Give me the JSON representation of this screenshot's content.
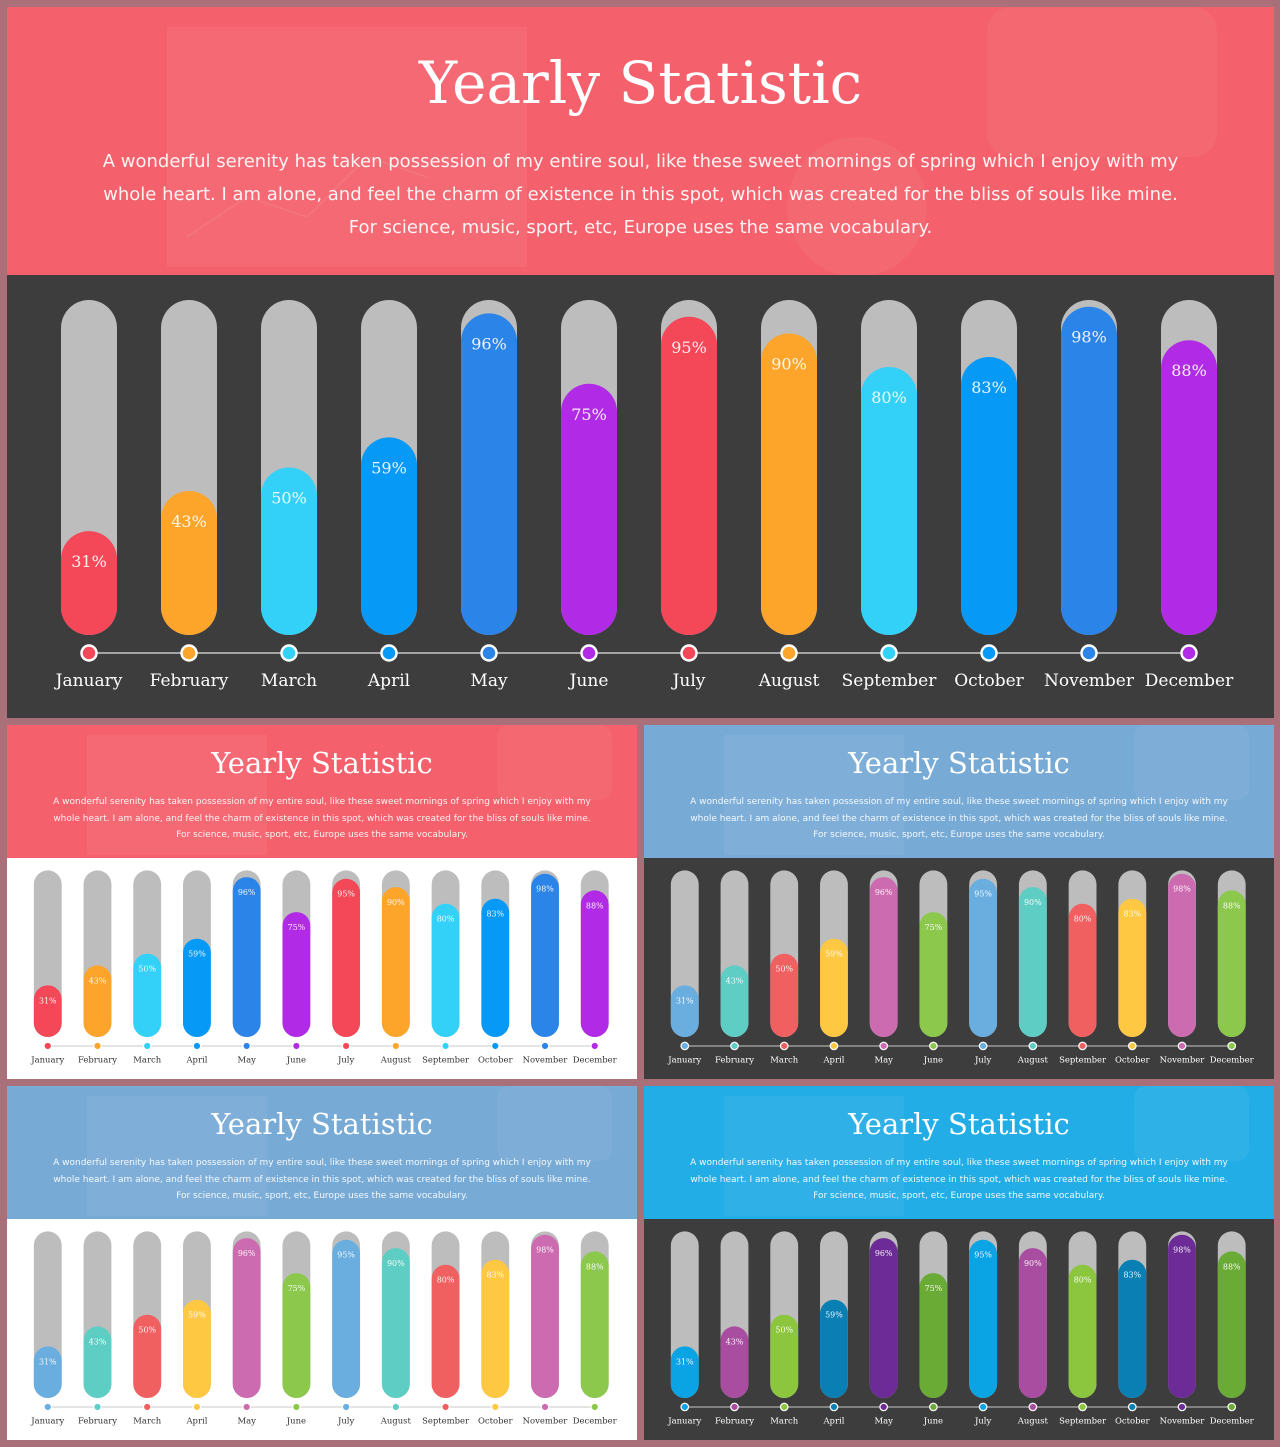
{
  "slides": [
    {
      "id": "main",
      "title": "Yearly Statistic",
      "description": "A wonderful serenity has taken possession of my entire soul, like these sweet mornings of spring which I enjoy with my whole heart. I am alone, and feel the charm of existence in this spot, which was created for the bliss of souls like mine. For science, music, sport, etc, Europe uses the same vocabulary.",
      "header_color": "#f4606b",
      "body_color": "#3d3d3d",
      "label_color": "#ffffff"
    },
    {
      "id": "variant-1",
      "title": "Yearly Statistic",
      "description": "A wonderful serenity has taken possession of my entire soul, like these sweet mornings of spring which I enjoy with my whole heart. I am alone, and feel the charm of existence in this spot, which was created for the bliss of souls like mine. For science, music, sport, etc, Europe uses the same vocabulary.",
      "header_color": "#f4606b",
      "body_color": "#ffffff",
      "label_color": "#333333"
    },
    {
      "id": "variant-2",
      "title": "Yearly Statistic",
      "description": "A wonderful serenity has taken possession of my entire soul, like these sweet mornings of spring which I enjoy with my whole heart. I am alone, and feel the charm of existence in this spot, which was created for the bliss of souls like mine. For science, music, sport, etc, Europe uses the same vocabulary.",
      "header_color": "#78aad6",
      "body_color": "#3d3d3d",
      "label_color": "#ffffff"
    },
    {
      "id": "variant-3",
      "title": "Yearly Statistic",
      "description": "A wonderful serenity has taken possession of my entire soul, like these sweet mornings of spring which I enjoy with my whole heart. I am alone, and feel the charm of existence in this spot, which was created for the bliss of souls like mine. For science, music, sport, etc, Europe uses the same vocabulary.",
      "header_color": "#78aad6",
      "body_color": "#ffffff",
      "label_color": "#333333"
    },
    {
      "id": "variant-4",
      "title": "Yearly Statistic",
      "description": "A wonderful serenity has taken possession of my entire soul, like these sweet mornings of spring which I enjoy with my whole heart. I am alone, and feel the charm of existence in this spot, which was created for the bliss of souls like mine. For science, music, sport, etc, Europe uses the same vocabulary.",
      "header_color": "#23ade6",
      "body_color": "#3d3d3d",
      "label_color": "#ffffff"
    }
  ],
  "chart_data": [
    {
      "type": "bar",
      "categories": [
        "January",
        "February",
        "March",
        "April",
        "May",
        "June",
        "July",
        "August",
        "September",
        "October",
        "November",
        "December"
      ],
      "values": [
        31,
        43,
        50,
        59,
        96,
        75,
        95,
        90,
        80,
        83,
        98,
        88
      ],
      "value_labels": [
        "31%",
        "43%",
        "50%",
        "59%",
        "96%",
        "75%",
        "95%",
        "90%",
        "80%",
        "83%",
        "98%",
        "88%"
      ],
      "ylim": [
        0,
        100
      ],
      "track_color": "#bdbdbd",
      "colors": [
        "#f44858",
        "#fca52a",
        "#33d1f8",
        "#0799f6",
        "#2b85e8",
        "#b12be6",
        "#f44858",
        "#fca52a",
        "#33d1f8",
        "#0799f6",
        "#2b85e8",
        "#b12be6"
      ]
    },
    {
      "type": "bar",
      "categories": [
        "January",
        "February",
        "March",
        "April",
        "May",
        "June",
        "July",
        "August",
        "September",
        "October",
        "November",
        "December"
      ],
      "values": [
        31,
        43,
        50,
        59,
        96,
        75,
        95,
        90,
        80,
        83,
        98,
        88
      ],
      "value_labels": [
        "31%",
        "43%",
        "50%",
        "59%",
        "96%",
        "75%",
        "95%",
        "90%",
        "80%",
        "83%",
        "98%",
        "88%"
      ],
      "ylim": [
        0,
        100
      ],
      "track_color": "#bdbdbd",
      "colors": [
        "#f44858",
        "#fca52a",
        "#33d1f8",
        "#0799f6",
        "#2b85e8",
        "#b12be6",
        "#f44858",
        "#fca52a",
        "#33d1f8",
        "#0799f6",
        "#2b85e8",
        "#b12be6"
      ]
    },
    {
      "type": "bar",
      "categories": [
        "January",
        "February",
        "March",
        "April",
        "May",
        "June",
        "July",
        "August",
        "September",
        "October",
        "November",
        "December"
      ],
      "values": [
        31,
        43,
        50,
        59,
        96,
        75,
        95,
        90,
        80,
        83,
        98,
        88
      ],
      "value_labels": [
        "31%",
        "43%",
        "50%",
        "59%",
        "96%",
        "75%",
        "95%",
        "90%",
        "80%",
        "83%",
        "98%",
        "88%"
      ],
      "ylim": [
        0,
        100
      ],
      "track_color": "#bdbdbd",
      "colors": [
        "#6aaee0",
        "#5ecdc4",
        "#f06060",
        "#fec842",
        "#cd6bb1",
        "#8cc84c",
        "#6aaee0",
        "#5ecdc4",
        "#f06060",
        "#fec842",
        "#cd6bb1",
        "#8cc84c"
      ]
    },
    {
      "type": "bar",
      "categories": [
        "January",
        "February",
        "March",
        "April",
        "May",
        "June",
        "July",
        "August",
        "September",
        "October",
        "November",
        "December"
      ],
      "values": [
        31,
        43,
        50,
        59,
        96,
        75,
        95,
        90,
        80,
        83,
        98,
        88
      ],
      "value_labels": [
        "31%",
        "43%",
        "50%",
        "59%",
        "96%",
        "75%",
        "95%",
        "90%",
        "80%",
        "83%",
        "98%",
        "88%"
      ],
      "ylim": [
        0,
        100
      ],
      "track_color": "#bdbdbd",
      "colors": [
        "#6aaee0",
        "#5ecdc4",
        "#f06060",
        "#fec842",
        "#cd6bb1",
        "#8cc84c",
        "#6aaee0",
        "#5ecdc4",
        "#f06060",
        "#fec842",
        "#cd6bb1",
        "#8cc84c"
      ]
    },
    {
      "type": "bar",
      "categories": [
        "January",
        "February",
        "March",
        "April",
        "May",
        "June",
        "July",
        "August",
        "September",
        "October",
        "November",
        "December"
      ],
      "values": [
        31,
        43,
        50,
        59,
        96,
        75,
        95,
        90,
        80,
        83,
        98,
        88
      ],
      "value_labels": [
        "31%",
        "43%",
        "50%",
        "59%",
        "96%",
        "75%",
        "95%",
        "90%",
        "80%",
        "83%",
        "98%",
        "88%"
      ],
      "ylim": [
        0,
        100
      ],
      "track_color": "#bdbdbd",
      "colors": [
        "#0aa3e3",
        "#a94da0",
        "#8cc63f",
        "#0a7fb4",
        "#6c2b97",
        "#6aab36",
        "#0aa3e3",
        "#a94da0",
        "#8cc63f",
        "#0a7fb4",
        "#6c2b97",
        "#6aab36"
      ]
    }
  ]
}
